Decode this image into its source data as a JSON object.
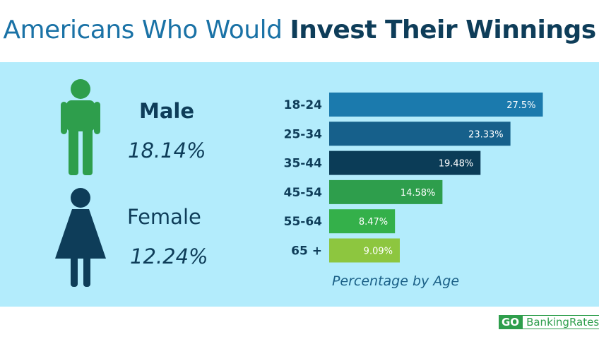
{
  "title": {
    "regular": "Americans Who Would",
    "bold": "Invest Their Winnings"
  },
  "genders": [
    {
      "label": "Male",
      "value": "18.14%",
      "color": "#2e9e4c"
    },
    {
      "label": "Female",
      "value": "12.24%",
      "color": "#0e3d59"
    }
  ],
  "chart_data": {
    "type": "bar",
    "orientation": "horizontal",
    "categories": [
      "18-24",
      "25-34",
      "35-44",
      "45-54",
      "55-64",
      "65 +"
    ],
    "values": [
      27.5,
      23.33,
      19.48,
      14.58,
      8.47,
      9.09
    ],
    "labels": [
      "27.5%",
      "23.33%",
      "19.48%",
      "14.58%",
      "8.47%",
      "9.09%"
    ],
    "colors": [
      "#1b7aad",
      "#16608b",
      "#0b3c57",
      "#2e9e4c",
      "#34b04a",
      "#8dc63f"
    ],
    "xlabel": "Percentage by Age",
    "grid": false
  },
  "footer": {
    "logo_go": "GO",
    "logo_rest": "BankingRates"
  }
}
